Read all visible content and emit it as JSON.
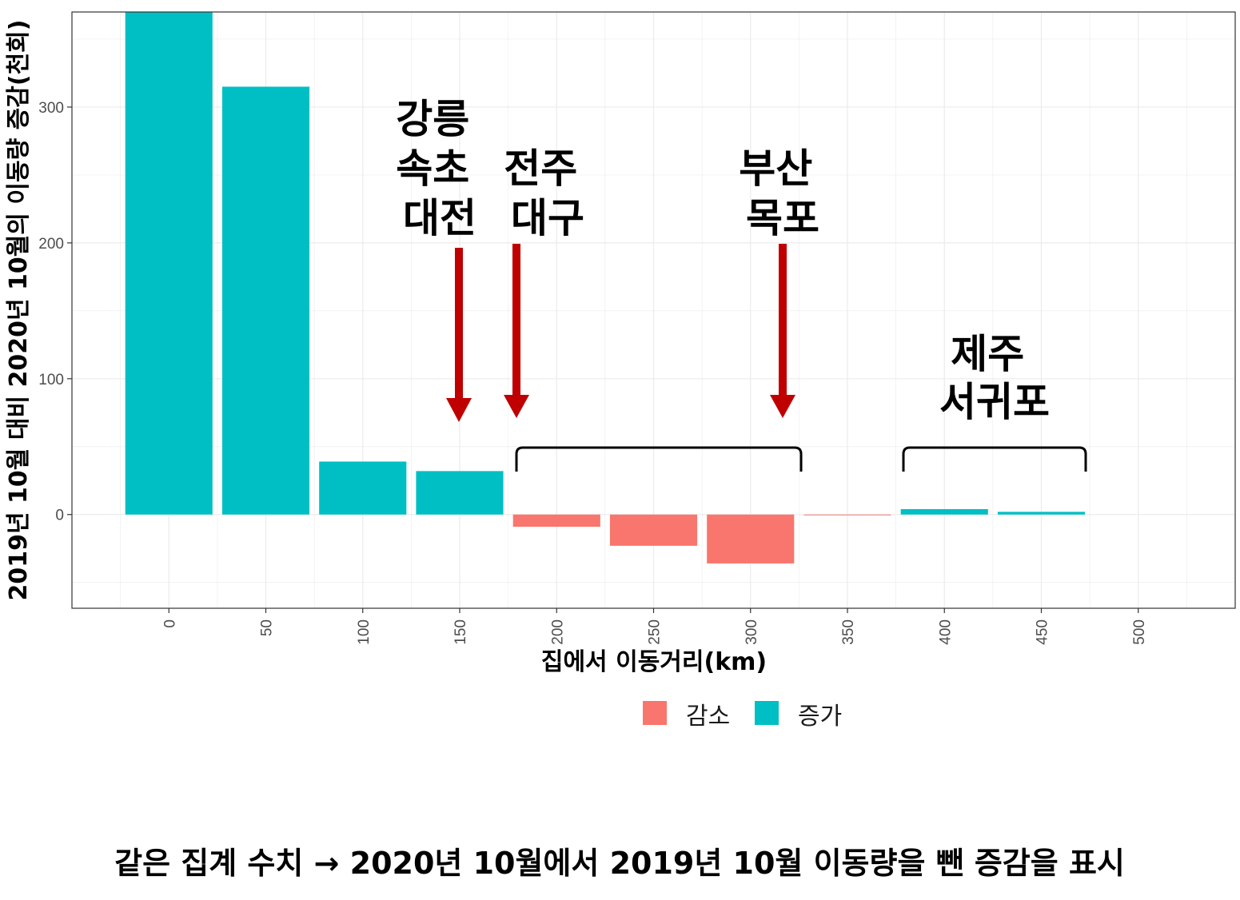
{
  "chart_data": {
    "type": "bar",
    "xlabel": "집에서 이동거리(km)",
    "ylabel": "2019년 10월 대비 2020년 10월의 이동량 증감(천회)",
    "xlim": [
      -50,
      550
    ],
    "ylim": [
      -69,
      370
    ],
    "x_ticks": [
      0,
      50,
      100,
      150,
      200,
      250,
      300,
      350,
      400,
      450,
      500
    ],
    "y_ticks": [
      0,
      100,
      200,
      300
    ],
    "bar_width": 45,
    "bars": [
      {
        "x": 0,
        "value": 370,
        "group": "증가"
      },
      {
        "x": 50,
        "value": 315,
        "group": "증가"
      },
      {
        "x": 100,
        "value": 39,
        "group": "증가"
      },
      {
        "x": 150,
        "value": 32,
        "group": "증가"
      },
      {
        "x": 200,
        "value": -9,
        "group": "감소"
      },
      {
        "x": 250,
        "value": -23,
        "group": "감소"
      },
      {
        "x": 300,
        "value": -36,
        "group": "감소"
      },
      {
        "x": 350,
        "value": -0.5,
        "group": "감소"
      },
      {
        "x": 400,
        "value": 4,
        "group": "증가"
      },
      {
        "x": 450,
        "value": 2,
        "group": "증가"
      }
    ],
    "legend": [
      {
        "name": "감소",
        "color": "#F8766D"
      },
      {
        "name": "증가",
        "color": "#00BFC4"
      }
    ],
    "legend_position": "bottom",
    "grid": true,
    "annotations": [
      {
        "lines": [
          "강릉",
          "속초",
          "대전"
        ],
        "arrow_x": 150
      },
      {
        "lines": [
          "전주",
          "대구"
        ],
        "arrow_x": 180
      },
      {
        "lines": [
          "부산",
          "목포"
        ],
        "arrow_x": 317
      },
      {
        "lines": [
          "제주",
          "서귀포"
        ]
      }
    ],
    "arrow_color": "#C00000"
  },
  "caption": "같은 집계 수치 → 2020년 10월에서 2019년 10월 이동량을 뺀 증감을 표시"
}
